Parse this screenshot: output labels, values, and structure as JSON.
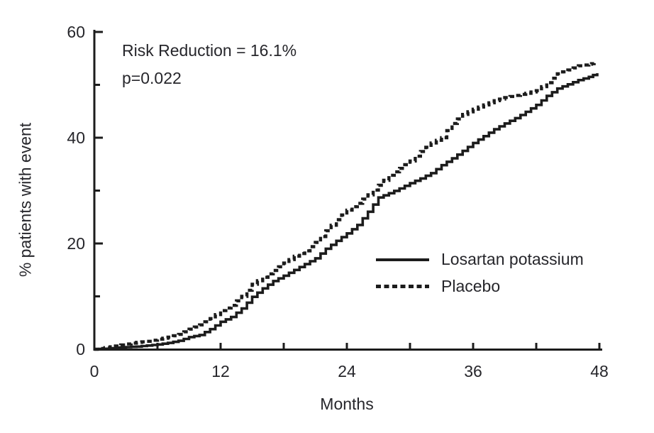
{
  "colors": {
    "background": "#ffffff",
    "axis": "#1c1c1c",
    "text": "#26262b",
    "curve": "#1c1c1c"
  },
  "chart_data": {
    "type": "line",
    "subtype": "kaplan-meier-step",
    "title": "",
    "xlabel": "Months",
    "ylabel": "% patients with event",
    "xlim": [
      0,
      48
    ],
    "ylim": [
      0,
      60
    ],
    "x_major_ticks": [
      0,
      12,
      24,
      36,
      48
    ],
    "x_minor_ticks": [
      6,
      18,
      30,
      42
    ],
    "y_major_ticks": [
      0,
      20,
      40,
      60
    ],
    "y_minor_ticks": [
      10,
      30,
      50
    ],
    "grid": false,
    "legend_position": "inside-lower-right",
    "annotations": [
      "Risk Reduction = 16.1%",
      "p=0.022"
    ],
    "series": [
      {
        "name": "Losartan potassium",
        "style": "solid",
        "color": "#1c1c1c",
        "points": [
          [
            0,
            0
          ],
          [
            1,
            0.1
          ],
          [
            2,
            0.3
          ],
          [
            3,
            0.4
          ],
          [
            4,
            0.5
          ],
          [
            5,
            0.7
          ],
          [
            6,
            0.9
          ],
          [
            7,
            1.2
          ],
          [
            8,
            1.6
          ],
          [
            9,
            2.3
          ],
          [
            10,
            2.7
          ],
          [
            11,
            3.8
          ],
          [
            12,
            5.2
          ],
          [
            13,
            6.1
          ],
          [
            14,
            7.7
          ],
          [
            15,
            9.9
          ],
          [
            16,
            11.5
          ],
          [
            17,
            12.9
          ],
          [
            18,
            13.9
          ],
          [
            19,
            15.0
          ],
          [
            20,
            16.1
          ],
          [
            21,
            17.2
          ],
          [
            22,
            19.0
          ],
          [
            23,
            20.5
          ],
          [
            24,
            21.9
          ],
          [
            25,
            23.5
          ],
          [
            26,
            26.0
          ],
          [
            27,
            28.7
          ],
          [
            28,
            29.5
          ],
          [
            29,
            30.4
          ],
          [
            30,
            31.4
          ],
          [
            31,
            32.3
          ],
          [
            32,
            33.3
          ],
          [
            33,
            34.8
          ],
          [
            34,
            36.1
          ],
          [
            35,
            37.5
          ],
          [
            36,
            39.0
          ],
          [
            37,
            40.3
          ],
          [
            38,
            41.6
          ],
          [
            39,
            42.7
          ],
          [
            40,
            43.7
          ],
          [
            41,
            44.9
          ],
          [
            42,
            46.2
          ],
          [
            43,
            47.9
          ],
          [
            44,
            49.3
          ],
          [
            45,
            50.1
          ],
          [
            46,
            50.9
          ],
          [
            47,
            51.5
          ],
          [
            47.8,
            52.2
          ]
        ]
      },
      {
        "name": "Placebo",
        "style": "dashed",
        "color": "#1c1c1c",
        "points": [
          [
            0,
            0
          ],
          [
            1,
            0.3
          ],
          [
            2,
            0.6
          ],
          [
            3,
            1.0
          ],
          [
            4,
            1.3
          ],
          [
            5,
            1.5
          ],
          [
            6,
            1.9
          ],
          [
            7,
            2.3
          ],
          [
            8,
            2.8
          ],
          [
            9,
            3.8
          ],
          [
            10,
            4.6
          ],
          [
            11,
            5.8
          ],
          [
            12,
            7.3
          ],
          [
            13,
            8.3
          ],
          [
            14,
            10.0
          ],
          [
            15,
            12.3
          ],
          [
            16,
            13.6
          ],
          [
            17,
            14.9
          ],
          [
            18,
            16.3
          ],
          [
            19,
            17.6
          ],
          [
            20,
            18.6
          ],
          [
            21,
            20.2
          ],
          [
            22,
            22.4
          ],
          [
            23,
            24.5
          ],
          [
            24,
            26.3
          ],
          [
            25,
            27.6
          ],
          [
            26,
            29.2
          ],
          [
            27,
            31.0
          ],
          [
            28,
            32.9
          ],
          [
            29,
            34.2
          ],
          [
            30,
            35.6
          ],
          [
            31,
            37.4
          ],
          [
            32,
            39.0
          ],
          [
            33,
            40.0
          ],
          [
            34,
            42.7
          ],
          [
            35,
            44.4
          ],
          [
            36,
            45.4
          ],
          [
            37,
            46.2
          ],
          [
            38,
            47.0
          ],
          [
            39,
            47.6
          ],
          [
            40,
            48.0
          ],
          [
            41,
            48.4
          ],
          [
            42,
            48.9
          ],
          [
            43,
            50.4
          ],
          [
            44,
            52.1
          ],
          [
            45,
            52.8
          ],
          [
            46,
            53.6
          ],
          [
            47,
            53.9
          ],
          [
            47.5,
            54.1
          ]
        ]
      }
    ]
  }
}
